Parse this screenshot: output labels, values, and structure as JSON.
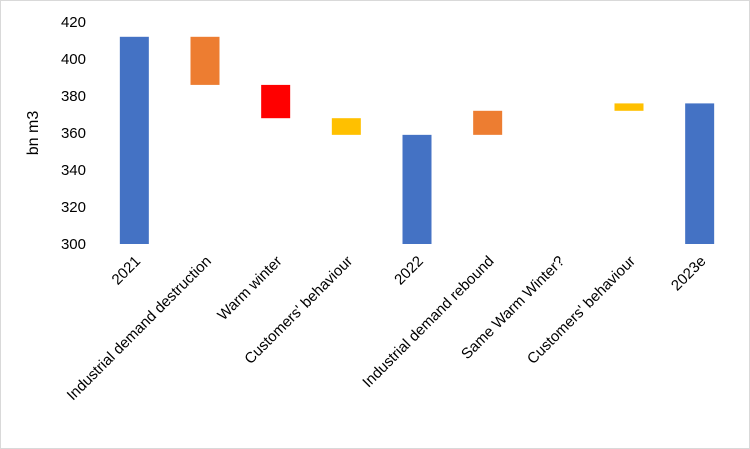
{
  "chart_data": {
    "type": "waterfall",
    "title": "",
    "xlabel": "",
    "ylabel": "bn m3",
    "ylim": [
      300,
      420
    ],
    "yticks": [
      300,
      320,
      340,
      360,
      380,
      400,
      420
    ],
    "grid": false,
    "legend": "none",
    "categories": [
      "2021",
      "Industrial demand destruction",
      "Warm winter",
      "Customers' behaviour",
      "2022",
      "Industrial demand rebound",
      "Same Warm Winter?",
      "Customers' behaviour",
      "2023e"
    ],
    "bars": [
      {
        "kind": "total",
        "start": 300,
        "end": 412,
        "color": "#4472C4"
      },
      {
        "kind": "change",
        "start": 412,
        "end": 386,
        "color": "#ED7D31"
      },
      {
        "kind": "change",
        "start": 386,
        "end": 368,
        "color": "#FF0000"
      },
      {
        "kind": "change",
        "start": 368,
        "end": 359,
        "color": "#FFC000"
      },
      {
        "kind": "total",
        "start": 300,
        "end": 359,
        "color": "#4472C4"
      },
      {
        "kind": "change",
        "start": 359,
        "end": 372,
        "color": "#ED7D31"
      },
      {
        "kind": "change",
        "start": 372,
        "end": 372,
        "color": "#FF0000"
      },
      {
        "kind": "change",
        "start": 372,
        "end": 376,
        "color": "#FFC000"
      },
      {
        "kind": "total",
        "start": 300,
        "end": 376,
        "color": "#4472C4"
      }
    ]
  }
}
